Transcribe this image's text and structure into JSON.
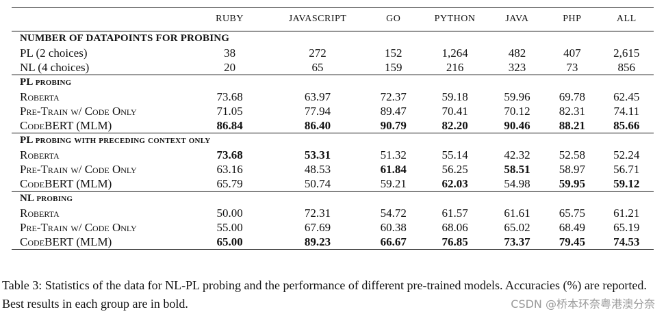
{
  "table": {
    "columns": [
      "Ruby",
      "JavaScript",
      "Go",
      "Python",
      "Java",
      "PHP",
      "All"
    ],
    "sections": [
      {
        "title": "Number of Datapoints for Probing",
        "rows": [
          {
            "label": "PL (2 choices)",
            "values": [
              "38",
              "272",
              "152",
              "1,264",
              "482",
              "407",
              "2,615"
            ],
            "bold": [
              false,
              false,
              false,
              false,
              false,
              false,
              false
            ]
          },
          {
            "label": "NL (4 choices)",
            "values": [
              "20",
              "65",
              "159",
              "216",
              "323",
              "73",
              "856"
            ],
            "bold": [
              false,
              false,
              false,
              false,
              false,
              false,
              false
            ]
          }
        ]
      },
      {
        "title": "PL probing",
        "rows": [
          {
            "label": "Roberta",
            "values": [
              "73.68",
              "63.97",
              "72.37",
              "59.18",
              "59.96",
              "69.78",
              "62.45"
            ],
            "bold": [
              false,
              false,
              false,
              false,
              false,
              false,
              false
            ]
          },
          {
            "label": "Pre-Train w/ Code Only",
            "values": [
              "71.05",
              "77.94",
              "89.47",
              "70.41",
              "70.12",
              "82.31",
              "74.11"
            ],
            "bold": [
              false,
              false,
              false,
              false,
              false,
              false,
              false
            ]
          },
          {
            "label": "CodeBERT (MLM)",
            "values": [
              "86.84",
              "86.40",
              "90.79",
              "82.20",
              "90.46",
              "88.21",
              "85.66"
            ],
            "bold": [
              true,
              true,
              true,
              true,
              true,
              true,
              true
            ]
          }
        ]
      },
      {
        "title": "PL probing with preceding context only",
        "rows": [
          {
            "label": "Roberta",
            "values": [
              "73.68",
              "53.31",
              "51.32",
              "55.14",
              "42.32",
              "52.58",
              "52.24"
            ],
            "bold": [
              true,
              true,
              false,
              false,
              false,
              false,
              false
            ]
          },
          {
            "label": "Pre-Train w/ Code Only",
            "values": [
              "63.16",
              "48.53",
              "61.84",
              "56.25",
              "58.51",
              "58.97",
              "56.71"
            ],
            "bold": [
              false,
              false,
              true,
              false,
              true,
              false,
              false
            ]
          },
          {
            "label": "CodeBERT (MLM)",
            "values": [
              "65.79",
              "50.74",
              "59.21",
              "62.03",
              "54.98",
              "59.95",
              "59.12"
            ],
            "bold": [
              false,
              false,
              false,
              true,
              false,
              true,
              true
            ]
          }
        ]
      },
      {
        "title": "NL probing",
        "rows": [
          {
            "label": "Roberta",
            "values": [
              "50.00",
              "72.31",
              "54.72",
              "61.57",
              "61.61",
              "65.75",
              "61.21"
            ],
            "bold": [
              false,
              false,
              false,
              false,
              false,
              false,
              false
            ]
          },
          {
            "label": "Pre-Train w/ Code Only",
            "values": [
              "55.00",
              "67.69",
              "60.38",
              "68.06",
              "65.02",
              "68.49",
              "65.19"
            ],
            "bold": [
              false,
              false,
              false,
              false,
              false,
              false,
              false
            ]
          },
          {
            "label": "CodeBERT (MLM)",
            "values": [
              "65.00",
              "89.23",
              "66.67",
              "76.85",
              "73.37",
              "79.45",
              "74.53"
            ],
            "bold": [
              true,
              true,
              true,
              true,
              true,
              true,
              true
            ]
          }
        ]
      }
    ]
  },
  "caption": "Table 3:  Statistics of the data for NL-PL probing and the performance of different pre-trained models. Accuracies (%) are reported. Best results in each group are in bold.",
  "watermark": "CSDN @桥本环奈粤港澳分奈"
}
